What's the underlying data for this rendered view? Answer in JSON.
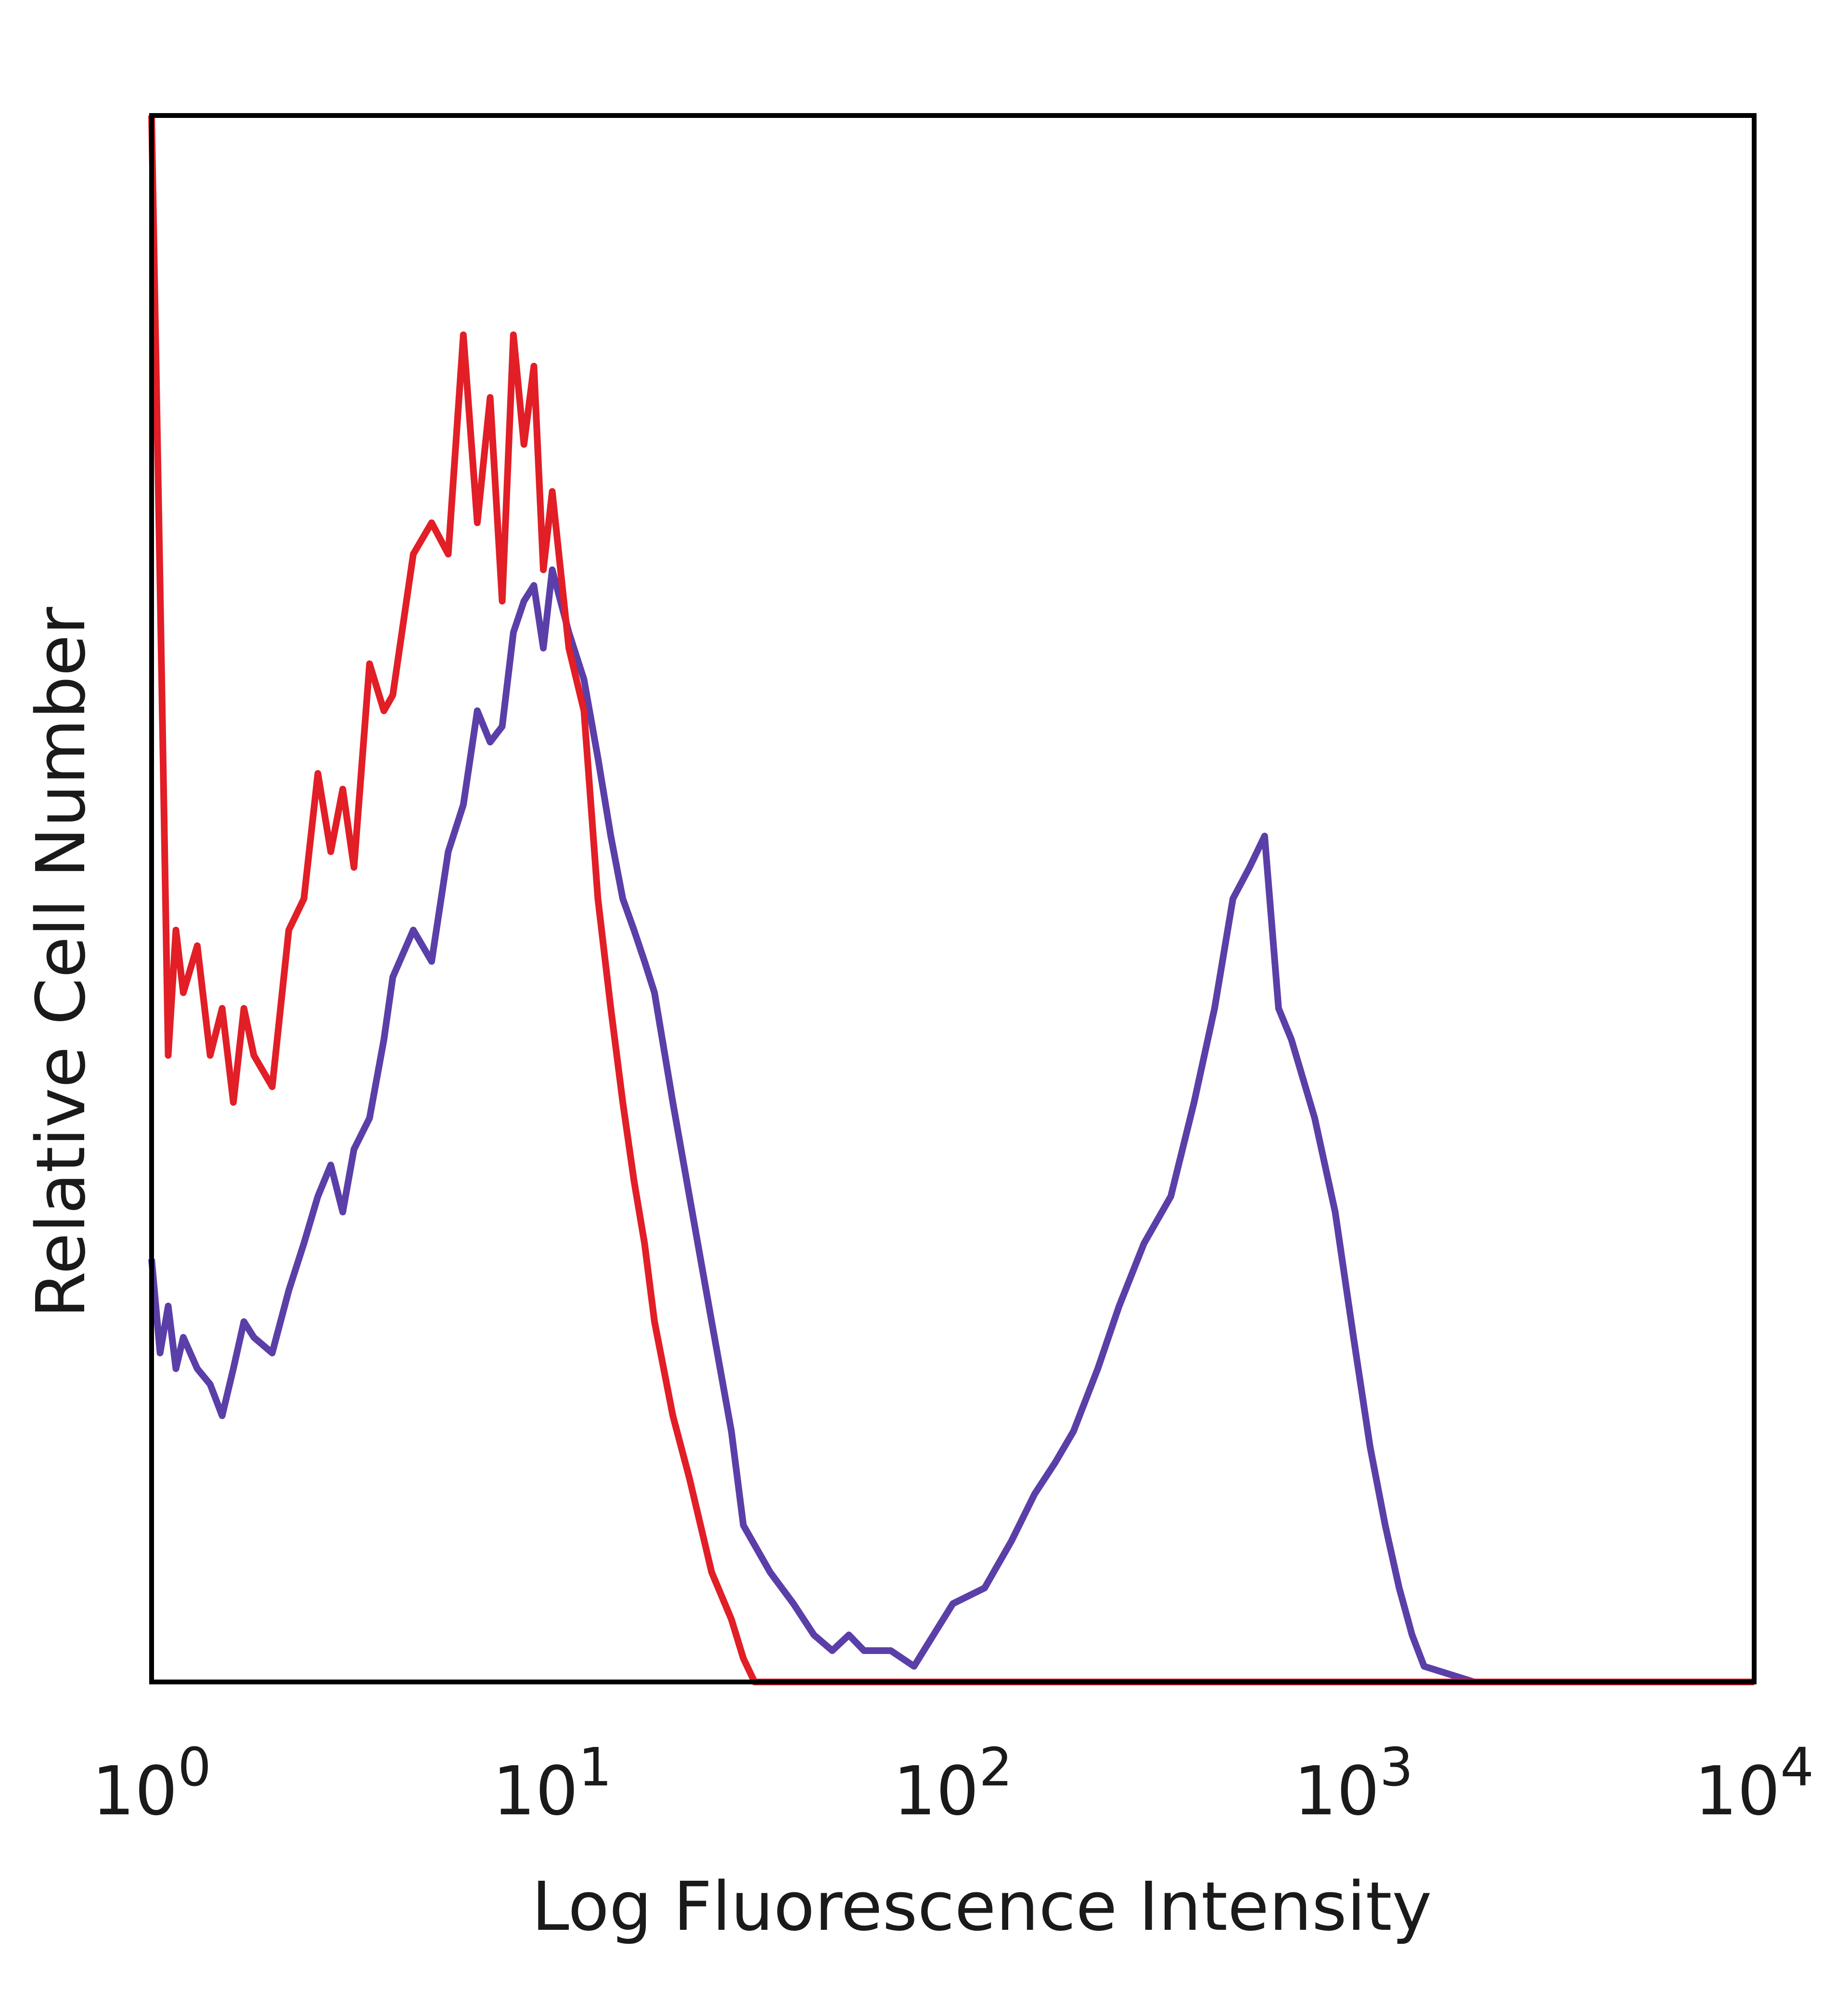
{
  "chart_data": {
    "type": "line",
    "title": "",
    "xlabel": "Log Fluorescence Intensity",
    "ylabel": "Relative Cell Number",
    "x_scale": "log",
    "xlim": [
      1,
      10000
    ],
    "ylim": [
      0,
      100
    ],
    "y_ticks_shown": false,
    "grid": false,
    "legend": "none",
    "x_ticks": [
      {
        "base": "10",
        "exp": "0",
        "value": 1
      },
      {
        "base": "10",
        "exp": "1",
        "value": 10
      },
      {
        "base": "10",
        "exp": "2",
        "value": 100
      },
      {
        "base": "10",
        "exp": "3",
        "value": 1000
      },
      {
        "base": "10",
        "exp": "4",
        "value": 10000
      }
    ],
    "series": [
      {
        "color": "#e21e26",
        "x": [
          1.0,
          1.05,
          1.1,
          1.15,
          1.2,
          1.3,
          1.4,
          1.5,
          1.6,
          1.7,
          1.8,
          2.0,
          2.2,
          2.4,
          2.6,
          2.8,
          3.0,
          3.2,
          3.5,
          3.8,
          4.0,
          4.5,
          5.0,
          5.5,
          6.0,
          6.5,
          7.0,
          7.5,
          8.0,
          8.5,
          9.0,
          9.5,
          10,
          11,
          12,
          13,
          14,
          15,
          16,
          17,
          18,
          20,
          22,
          25,
          28,
          30,
          32,
          35,
          40,
          50,
          70,
          100,
          200,
          500,
          1000,
          2000,
          5000,
          10000
        ],
        "y": [
          100,
          70,
          40,
          48,
          44,
          47,
          40,
          43,
          37,
          43,
          40,
          38,
          48,
          50,
          58,
          53,
          57,
          52,
          65,
          62,
          63,
          72,
          74,
          72,
          86,
          74,
          82,
          69,
          86,
          79,
          84,
          71,
          76,
          66,
          62,
          50,
          43,
          37,
          32,
          28,
          23,
          17,
          13,
          7,
          4,
          1.5,
          0,
          0,
          0,
          0,
          0,
          0,
          0,
          0,
          0,
          0,
          0,
          0
        ]
      },
      {
        "color": "#5b3fa8",
        "x": [
          1.0,
          1.05,
          1.1,
          1.15,
          1.2,
          1.3,
          1.4,
          1.5,
          1.6,
          1.7,
          1.8,
          2.0,
          2.2,
          2.4,
          2.6,
          2.8,
          3.0,
          3.2,
          3.5,
          3.8,
          4.0,
          4.5,
          5.0,
          5.5,
          6.0,
          6.5,
          7.0,
          7.5,
          8.0,
          8.5,
          9.0,
          9.5,
          10,
          11,
          12,
          13,
          14,
          15,
          16,
          17,
          18,
          20,
          22,
          25,
          28,
          30,
          35,
          40,
          45,
          50,
          55,
          60,
          70,
          80,
          100,
          120,
          140,
          160,
          180,
          200,
          230,
          260,
          300,
          350,
          400,
          450,
          500,
          550,
          600,
          650,
          700,
          800,
          900,
          1000,
          1100,
          1200,
          1300,
          1400,
          1500,
          2000,
          5000,
          10000
        ],
        "y": [
          27,
          21,
          24,
          20,
          22,
          20,
          19,
          17,
          20,
          23,
          22,
          21,
          25,
          28,
          31,
          33,
          30,
          34,
          36,
          41,
          45,
          48,
          46,
          53,
          56,
          62,
          60,
          61,
          67,
          69,
          70,
          66,
          71,
          67,
          64,
          59,
          54,
          50,
          48,
          46,
          44,
          37,
          31,
          23,
          16,
          10,
          7,
          5,
          3,
          2,
          3,
          2,
          2,
          1,
          5,
          6,
          9,
          12,
          14,
          16,
          20,
          24,
          28,
          31,
          37,
          43,
          50,
          52,
          54,
          43,
          41,
          36,
          30,
          22,
          15,
          10,
          6,
          3,
          1,
          0,
          0,
          0
        ]
      }
    ]
  }
}
